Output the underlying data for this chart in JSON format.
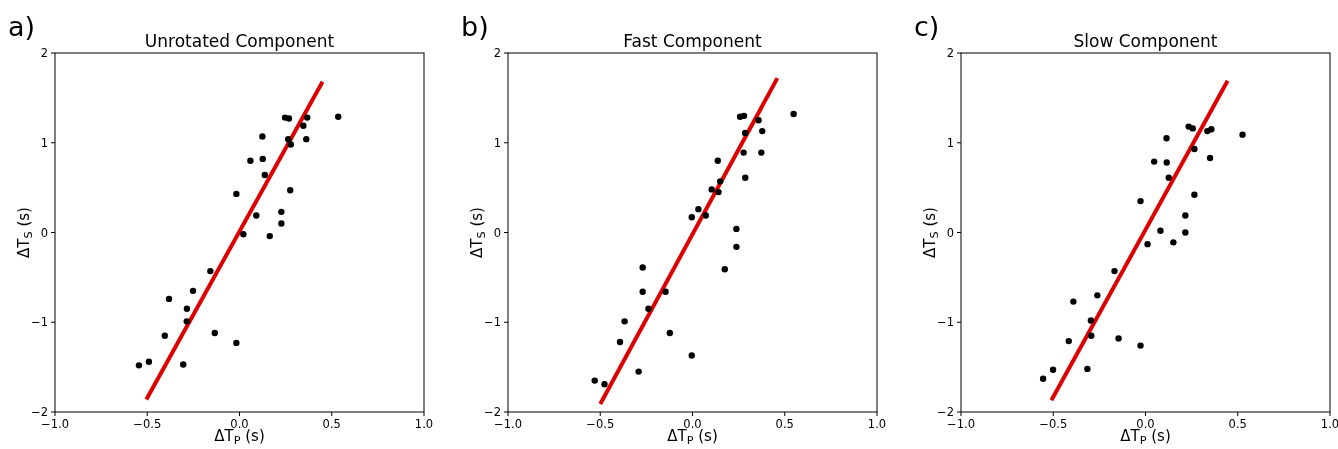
{
  "chart_data": [
    {
      "type": "scatter",
      "title": "Unrotated Component",
      "xlabel": "ΔT$_{P}$ (s)",
      "ylabel": "ΔT$_{S}$ (s)",
      "annotations": [
        "a)"
      ],
      "marker": "circle",
      "grid": false,
      "xlim": [
        -1,
        1
      ],
      "ylim": [
        -2,
        2
      ],
      "xticks": [
        {
          "value": -1,
          "label": "−1.0"
        },
        {
          "value": -0.5,
          "label": "−0.5"
        },
        {
          "value": 0,
          "label": "0.0"
        },
        {
          "value": 0.5,
          "label": "0.5"
        },
        {
          "value": 1,
          "label": "1.0"
        }
      ],
      "yticks": [
        -2,
        -1,
        0,
        1,
        2
      ],
      "x": [
        0.535,
        0.247,
        0.268,
        0.367,
        0.346,
        0.124,
        0.264,
        0.362,
        0.278,
        0.059,
        0.126,
        0.137,
        -0.017,
        0.275,
        0.091,
        0.227,
        0.227,
        0.021,
        0.164,
        -0.158,
        -0.252,
        -0.382,
        -0.285,
        -0.286,
        -0.405,
        -0.134,
        -0.017,
        -0.491,
        -0.545,
        -0.305
      ],
      "series": [
        {
          "type": "scatter",
          "color": "#000000",
          "values": [
            1.29,
            1.28,
            1.27,
            1.28,
            1.19,
            1.07,
            1.04,
            1.04,
            0.98,
            0.8,
            0.82,
            0.64,
            0.43,
            0.47,
            0.19,
            0.23,
            0.1,
            -0.02,
            -0.04,
            -0.43,
            -0.65,
            -0.74,
            -0.85,
            -0.99,
            -1.15,
            -1.12,
            -1.23,
            -1.44,
            -1.48,
            -1.47
          ]
        },
        {
          "type": "line",
          "color": "#dd0000",
          "x": [
            -0.505,
            0.45
          ],
          "values": [
            -1.86,
            1.68
          ],
          "marker": "none"
        }
      ]
    },
    {
      "type": "scatter",
      "title": "Fast Component",
      "xlabel": "ΔT$_{P}$ (s)",
      "ylabel": "ΔT$_{S}$ (s)",
      "annotations": [
        "b)"
      ],
      "marker": "circle",
      "grid": false,
      "xlim": [
        -1,
        1
      ],
      "ylim": [
        -2,
        2
      ],
      "xticks": [
        {
          "value": -1,
          "label": "−1.0"
        },
        {
          "value": -0.5,
          "label": "−0.5"
        },
        {
          "value": 0,
          "label": "0.0"
        },
        {
          "value": 0.5,
          "label": "0.5"
        },
        {
          "value": 1,
          "label": "1.0"
        }
      ],
      "yticks": [
        -2,
        -1,
        0,
        1,
        2
      ],
      "x": [
        0.548,
        0.258,
        0.279,
        0.358,
        0.378,
        0.285,
        0.277,
        0.373,
        0.137,
        0.286,
        0.15,
        0.104,
        0.141,
        0.032,
        -0.004,
        0.072,
        0.238,
        0.238,
        0.175,
        -0.27,
        -0.27,
        -0.146,
        -0.239,
        -0.368,
        -0.123,
        -0.393,
        -0.004,
        -0.292,
        -0.53,
        -0.477
      ],
      "series": [
        {
          "type": "scatter",
          "color": "#000000",
          "values": [
            1.32,
            1.29,
            1.3,
            1.25,
            1.13,
            1.11,
            0.89,
            0.89,
            0.8,
            0.61,
            0.57,
            0.48,
            0.45,
            0.26,
            0.17,
            0.19,
            0.04,
            -0.16,
            -0.41,
            -0.39,
            -0.66,
            -0.66,
            -0.85,
            -0.99,
            -1.12,
            -1.22,
            -1.37,
            -1.55,
            -1.65,
            -1.69
          ]
        },
        {
          "type": "line",
          "color": "#dd0000",
          "x": [
            -0.5,
            0.46
          ],
          "values": [
            -1.91,
            1.72
          ],
          "marker": "none"
        }
      ]
    },
    {
      "type": "scatter",
      "title": "Slow Component",
      "xlabel": "ΔT$_{P}$ (s)",
      "ylabel": "ΔT$_{S}$ (s)",
      "annotations": [
        "c)"
      ],
      "marker": "circle",
      "grid": false,
      "xlim": [
        -1,
        1
      ],
      "ylim": [
        -2,
        2
      ],
      "xticks": [
        {
          "value": -1,
          "label": "−1.0"
        },
        {
          "value": -0.5,
          "label": "−0.5"
        },
        {
          "value": 0,
          "label": "0.0"
        },
        {
          "value": 0.5,
          "label": "0.5"
        },
        {
          "value": 1,
          "label": "1.0"
        }
      ],
      "yticks": [
        -2,
        -1,
        0,
        1,
        2
      ],
      "x": [
        0.526,
        0.234,
        0.256,
        0.335,
        0.357,
        0.114,
        0.265,
        0.35,
        0.047,
        0.115,
        0.126,
        -0.027,
        0.265,
        0.216,
        0.081,
        0.216,
        0.011,
        0.151,
        -0.168,
        -0.261,
        -0.391,
        -0.296,
        -0.294,
        -0.416,
        -0.146,
        -0.027,
        -0.501,
        -0.555,
        -0.315
      ],
      "series": [
        {
          "type": "scatter",
          "color": "#000000",
          "values": [
            1.09,
            1.18,
            1.16,
            1.13,
            1.15,
            1.05,
            0.93,
            0.83,
            0.79,
            0.78,
            0.61,
            0.35,
            0.42,
            0.19,
            0.02,
            0.0,
            -0.13,
            -0.11,
            -0.43,
            -0.7,
            -0.77,
            -0.98,
            -1.15,
            -1.21,
            -1.18,
            -1.26,
            -1.53,
            -1.63,
            -1.52
          ]
        },
        {
          "type": "line",
          "color": "#dd0000",
          "x": [
            -0.51,
            0.445
          ],
          "values": [
            -1.87,
            1.69
          ],
          "marker": "none"
        }
      ]
    }
  ]
}
